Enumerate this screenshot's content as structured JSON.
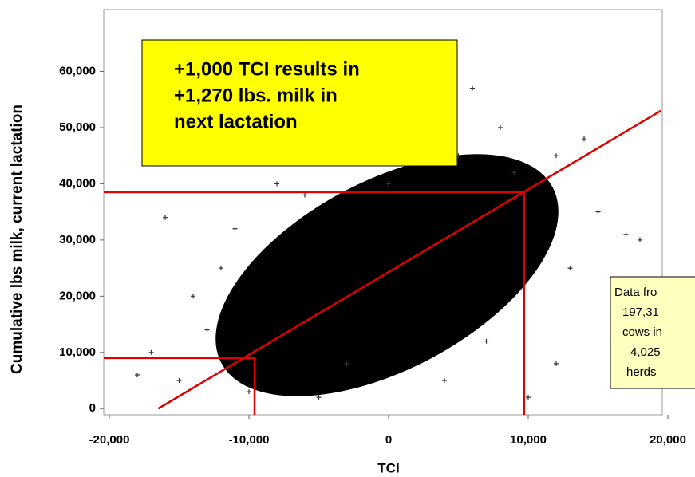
{
  "chart_data": {
    "type": "scatter",
    "x_label": "TCI",
    "y_label": "Cumulative lbs milk, current lactation",
    "xlim": [
      -20400,
      19600
    ],
    "ylim": [
      -1100,
      71000
    ],
    "xticks": [
      {
        "value": -20000,
        "label": "-20,000"
      },
      {
        "value": -10000,
        "label": "-10,000"
      },
      0,
      {
        "value": 10000,
        "label": "10,000"
      },
      {
        "value": 20000,
        "label": "20,000"
      }
    ],
    "yticks": [
      0,
      {
        "value": 10000,
        "label": "10,000"
      },
      {
        "value": 20000,
        "label": "20,000"
      },
      {
        "value": 30000,
        "label": "30,000"
      },
      {
        "value": 40000,
        "label": "40,000"
      },
      {
        "value": 50000,
        "label": "50,000"
      },
      {
        "value": 60000,
        "label": "60,000"
      }
    ],
    "series": [
      {
        "color": "#333333",
        "x": [
          -16000,
          -15000,
          -18000,
          -12000,
          15000,
          17000,
          12000,
          14000,
          6000,
          8000,
          -14000,
          -8000,
          18000,
          16000,
          12000,
          10000,
          -5000,
          5000,
          -10000,
          2000,
          -17000,
          13000,
          -11000,
          9000,
          -6000,
          4000,
          0,
          -3000,
          7000,
          -13000
        ],
        "values": [
          34000,
          5000,
          6000,
          25000,
          35000,
          31000,
          45000,
          48000,
          57000,
          50000,
          20000,
          40000,
          30000,
          15000,
          8000,
          2000,
          2000,
          45000,
          3000,
          48000,
          10000,
          25000,
          32000,
          42000,
          38000,
          5000,
          40000,
          8000,
          12000,
          14000
        ]
      }
    ],
    "lines": [
      {
        "color": "#e00000",
        "x": [
          -16500,
          19500
        ],
        "y": [
          0,
          53000
        ]
      },
      {
        "color": "#e00000",
        "x": [
          -20400,
          9700,
          9700
        ],
        "y": [
          38500,
          38500,
          -1100
        ]
      },
      {
        "color": "#e00000",
        "x": [
          -20400,
          -9600,
          -9600
        ],
        "y": [
          9000,
          9000,
          -1100
        ]
      }
    ],
    "annotation": [
      "+1,000 TCI results in",
      "+1,270 lbs. milk in",
      "next lactation"
    ],
    "note": [
      "Data fro",
      "197,31",
      "cows in",
      "4,025",
      "herds"
    ]
  }
}
